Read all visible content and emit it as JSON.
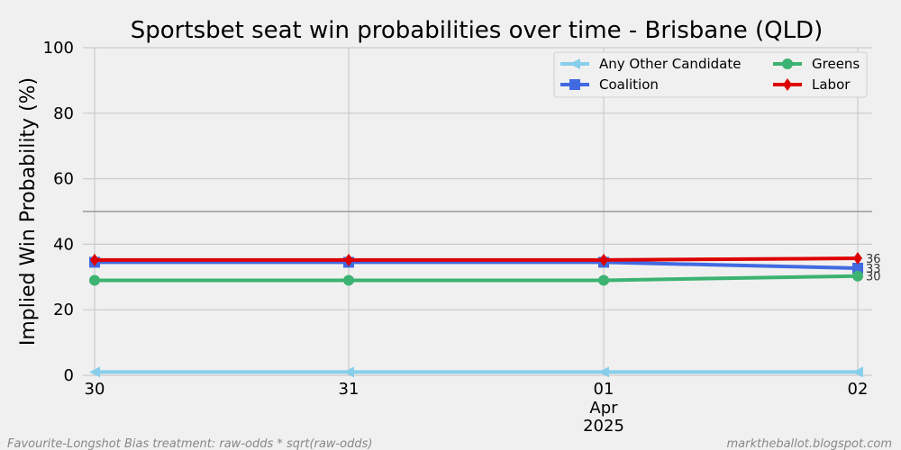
{
  "chart_data": {
    "type": "line",
    "title": "Sportsbet seat win probabilities over time - Brisbane (QLD)",
    "xlabel": "",
    "ylabel": "Implied Win Probability (%)",
    "ylim": [
      0,
      100
    ],
    "yticks": [
      "0",
      "20",
      "40",
      "60",
      "80",
      "100"
    ],
    "x": [
      "2025-03-30",
      "2025-03-31",
      "2025-04-01",
      "2025-04-02"
    ],
    "xtick_labels": [
      {
        "day": "30",
        "month": "",
        "year": ""
      },
      {
        "day": "31",
        "month": "",
        "year": ""
      },
      {
        "day": "01",
        "month": "Apr",
        "year": "2025"
      },
      {
        "day": "02",
        "month": "",
        "year": ""
      }
    ],
    "reference_line": 50,
    "grid": true,
    "legend_position": "top-right",
    "series": [
      {
        "name": "Any Other Candidate",
        "color": "#87ceeb",
        "marker": "triangle-left",
        "values": [
          1,
          1,
          1,
          1
        ],
        "end_label": ""
      },
      {
        "name": "Coalition",
        "color": "#4169e1",
        "marker": "square",
        "values": [
          34.5,
          34.5,
          34.5,
          32.7
        ],
        "end_label": "33"
      },
      {
        "name": "Greens",
        "color": "#3cb371",
        "marker": "circle",
        "values": [
          29,
          29,
          29,
          30.3
        ],
        "end_label": "30"
      },
      {
        "name": "Labor",
        "color": "#dd0000",
        "marker": "diamond",
        "values": [
          35.2,
          35.2,
          35.2,
          35.7
        ],
        "end_label": "36"
      }
    ]
  },
  "footer": {
    "left": "Favourite-Longshot Bias treatment: raw-odds * sqrt(raw-odds)",
    "right": "marktheballot.blogspot.com"
  }
}
